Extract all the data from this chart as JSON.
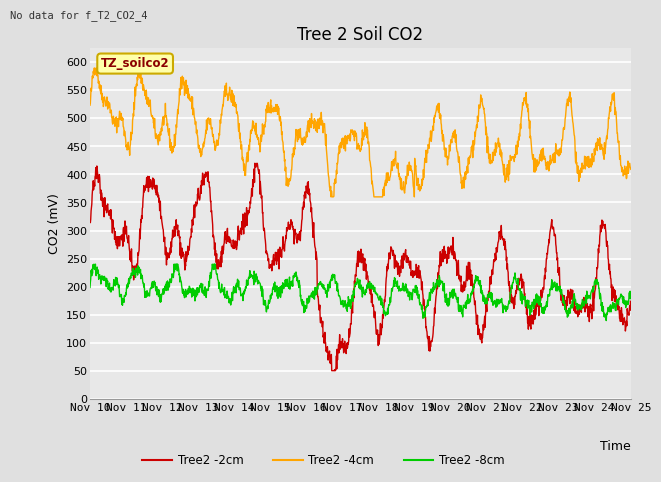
{
  "title": "Tree 2 Soil CO2",
  "subtitle": "No data for f_T2_CO2_4",
  "xlabel": "Time",
  "ylabel": "CO2 (mV)",
  "ylim": [
    0,
    625
  ],
  "yticks": [
    0,
    50,
    100,
    150,
    200,
    250,
    300,
    350,
    400,
    450,
    500,
    550,
    600
  ],
  "xtick_labels": [
    "Nov 10",
    "Nov 11",
    "Nov 12",
    "Nov 13",
    "Nov 14",
    "Nov 15",
    "Nov 16",
    "Nov 17",
    "Nov 18",
    "Nov 19",
    "Nov 20",
    "Nov 21",
    "Nov 22",
    "Nov 23",
    "Nov 24",
    "Nov 25"
  ],
  "legend_label_2cm": "Tree2 -2cm",
  "legend_label_4cm": "Tree2 -4cm",
  "legend_label_8cm": "Tree2 -8cm",
  "color_2cm": "#cc0000",
  "color_4cm": "#ffa500",
  "color_8cm": "#00cc00",
  "box_label": "TZ_soilco2",
  "bg_color": "#e0e0e0",
  "plot_bg_color": "#e8e8e8",
  "grid_color": "#ffffff",
  "title_fontsize": 12,
  "label_fontsize": 9,
  "tick_fontsize": 8
}
